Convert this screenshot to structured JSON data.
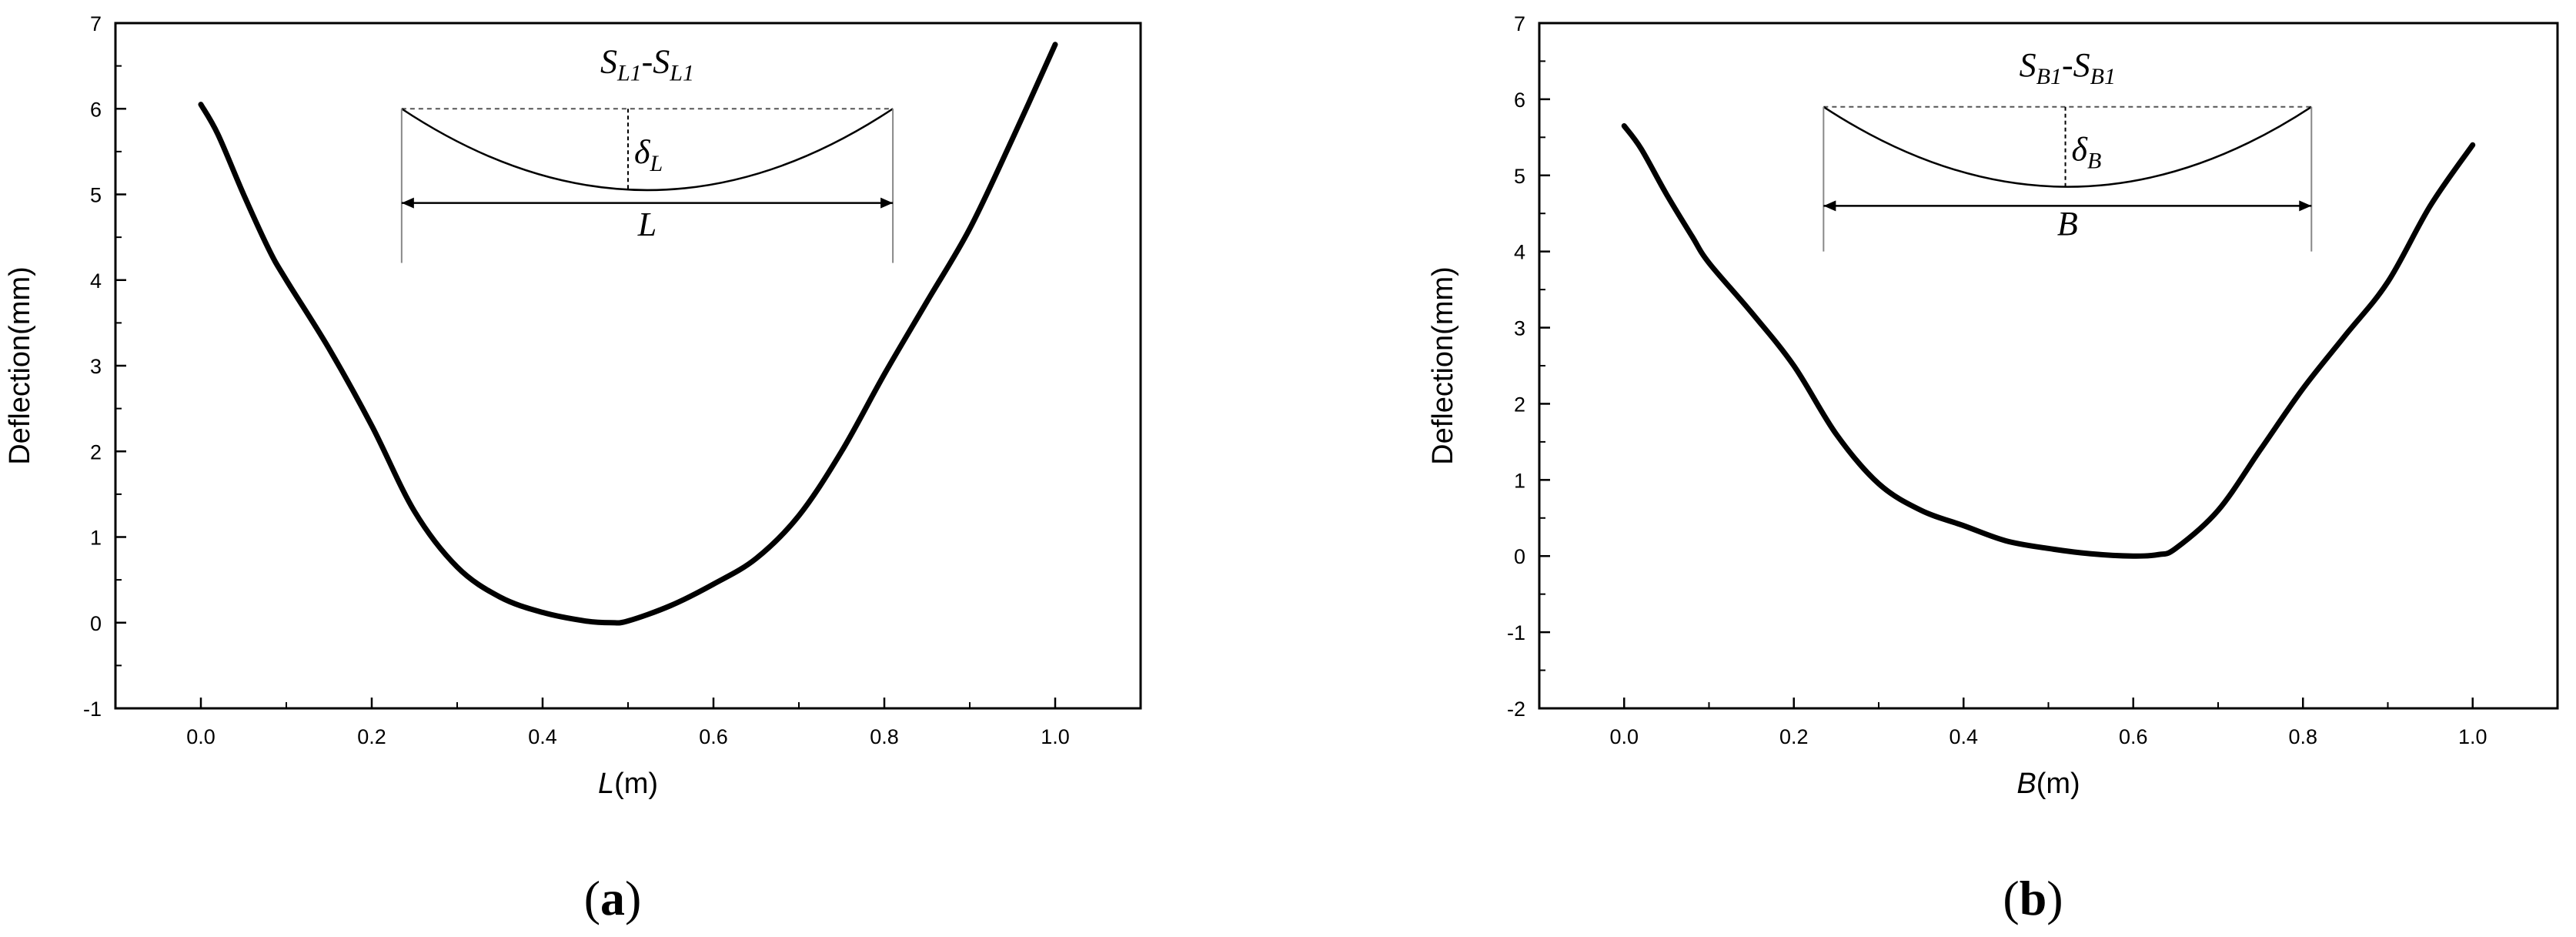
{
  "chart_data": [
    {
      "type": "line",
      "panel": "a",
      "panel_label_open": "(",
      "panel_label_letter": "a",
      "panel_label_close": ")",
      "xlabel_var": "L",
      "xlabel_unit": "(m)",
      "ylabel": "Deflection(mm)",
      "xlim": [
        -0.1,
        1.1
      ],
      "ylim": [
        -1,
        7
      ],
      "xticks": [
        "0.0",
        "0.2",
        "0.4",
        "0.6",
        "0.8",
        "1.0"
      ],
      "yticks": [
        "-1",
        "0",
        "1",
        "2",
        "3",
        "4",
        "5",
        "6",
        "7"
      ],
      "series": [
        {
          "x": [
            0.0,
            0.02,
            0.05,
            0.08,
            0.1,
            0.15,
            0.2,
            0.25,
            0.3,
            0.35,
            0.4,
            0.45,
            0.48,
            0.5,
            0.55,
            0.6,
            0.65,
            0.7,
            0.75,
            0.8,
            0.85,
            0.9,
            0.95,
            1.0
          ],
          "y": [
            6.05,
            5.7,
            5.0,
            4.35,
            4.0,
            3.2,
            2.3,
            1.3,
            0.65,
            0.3,
            0.12,
            0.02,
            0.0,
            0.02,
            0.2,
            0.45,
            0.75,
            1.25,
            2.0,
            2.9,
            3.75,
            4.6,
            5.65,
            6.75
          ]
        }
      ],
      "inset": {
        "title_s": "S",
        "title_sub1": "L1",
        "title_dash": "-",
        "title_s2": "S",
        "title_sub2": "L1",
        "delta": "δ",
        "delta_sub": "L",
        "span_label": "L"
      }
    },
    {
      "type": "line",
      "panel": "b",
      "panel_label_open": "(",
      "panel_label_letter": "b",
      "panel_label_close": ")",
      "xlabel_var": "B",
      "xlabel_unit": "(m)",
      "ylabel": "Deflection(mm)",
      "xlim": [
        -0.1,
        1.1
      ],
      "ylim": [
        -2,
        7
      ],
      "xticks": [
        "0.0",
        "0.2",
        "0.4",
        "0.6",
        "0.8",
        "1.0"
      ],
      "yticks": [
        "-2",
        "-1",
        "0",
        "1",
        "2",
        "3",
        "4",
        "5",
        "6",
        "7"
      ],
      "series": [
        {
          "x": [
            0.0,
            0.02,
            0.05,
            0.08,
            0.1,
            0.15,
            0.2,
            0.25,
            0.3,
            0.35,
            0.4,
            0.45,
            0.5,
            0.55,
            0.6,
            0.63,
            0.65,
            0.7,
            0.75,
            0.8,
            0.85,
            0.9,
            0.95,
            1.0
          ],
          "y": [
            5.65,
            5.35,
            4.75,
            4.2,
            3.85,
            3.2,
            2.5,
            1.6,
            0.95,
            0.6,
            0.4,
            0.2,
            0.1,
            0.03,
            0.0,
            0.02,
            0.1,
            0.6,
            1.4,
            2.2,
            2.9,
            3.6,
            4.6,
            5.4
          ]
        }
      ],
      "inset": {
        "title_s": "S",
        "title_sub1": "B1",
        "title_dash": "-",
        "title_s2": "S",
        "title_sub2": "B1",
        "delta": "δ",
        "delta_sub": "B",
        "span_label": "B"
      }
    }
  ]
}
